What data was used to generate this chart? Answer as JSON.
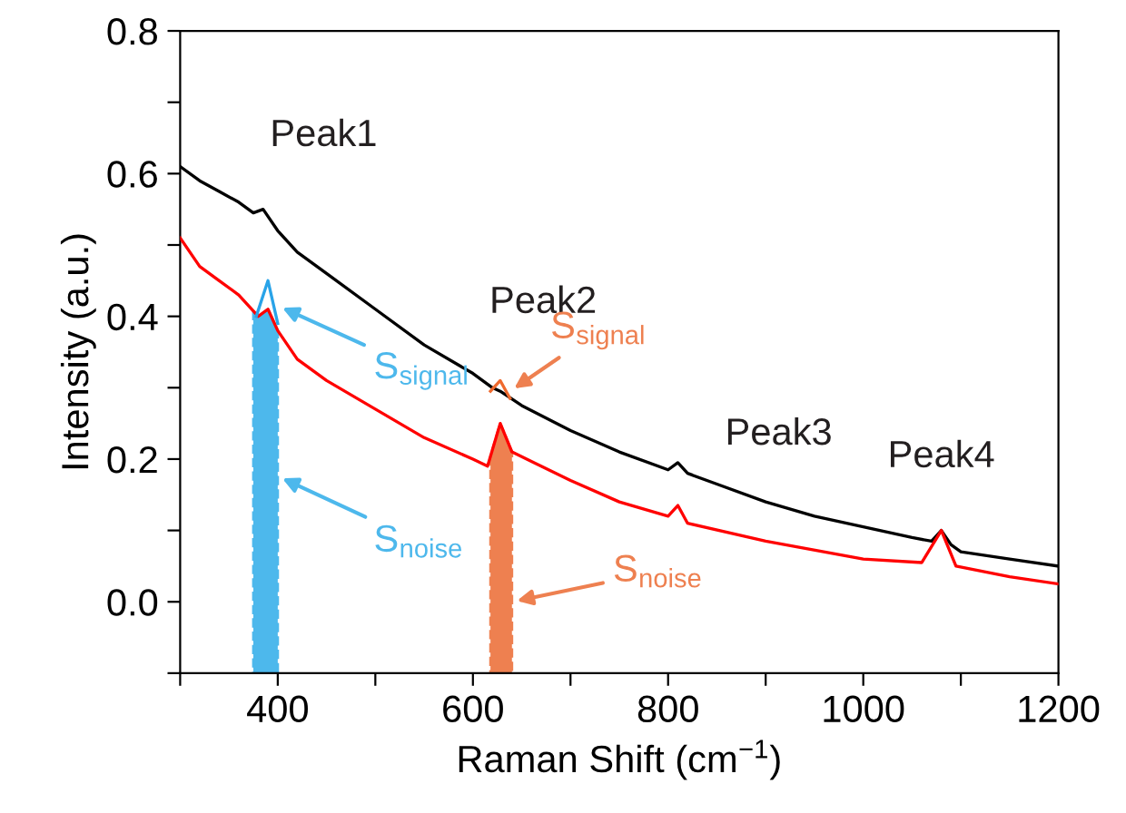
{
  "chart_data": {
    "type": "line",
    "xlabel": "Raman Shift (cm$^{−1}$)",
    "ylabel": "Intensity (a.u.)",
    "xlim": [
      300,
      1200
    ],
    "xticks": [
      {
        "value": 300,
        "label": null
      },
      400,
      {
        "value": 500,
        "label": null
      },
      600,
      {
        "value": 700,
        "label": null
      },
      800,
      {
        "value": 900,
        "label": null
      },
      1000,
      {
        "value": 1100,
        "label": null
      },
      1200
    ],
    "ylim": [
      -0.1,
      0.8
    ],
    "yticks": [
      {
        "value": -0.1,
        "label": null
      },
      "0.0",
      {
        "value": 0.1,
        "label": null
      },
      0.2,
      {
        "value": 0.3,
        "label": null
      },
      0.4,
      {
        "value": 0.5,
        "label": null
      },
      0.6,
      {
        "value": 0.7,
        "label": null
      },
      0.8
    ],
    "grid": false,
    "legend": false,
    "marker": "none",
    "line_style": "solid",
    "series": [
      {
        "color": "#000000",
        "x": [
          300,
          320,
          340,
          360,
          375,
          385,
          400,
          420,
          450,
          500,
          550,
          600,
          620,
          628,
          650,
          700,
          750,
          800,
          810,
          820,
          850,
          900,
          950,
          1000,
          1050,
          1070,
          1080,
          1090,
          1100,
          1150,
          1200
        ],
        "values": [
          0.61,
          0.59,
          0.575,
          0.56,
          0.545,
          0.55,
          0.52,
          0.49,
          0.46,
          0.41,
          0.36,
          0.32,
          0.3,
          0.295,
          0.275,
          0.24,
          0.21,
          0.185,
          0.195,
          0.18,
          0.165,
          0.14,
          0.12,
          0.105,
          0.09,
          0.085,
          0.1,
          0.08,
          0.07,
          0.06,
          0.05
        ]
      },
      {
        "color": "#ff0000",
        "x": [
          300,
          320,
          340,
          360,
          380,
          390,
          400,
          420,
          450,
          500,
          550,
          600,
          615,
          628,
          640,
          700,
          750,
          800,
          810,
          820,
          900,
          1000,
          1060,
          1080,
          1095,
          1150,
          1200
        ],
        "values": [
          0.51,
          0.47,
          0.45,
          0.43,
          0.4,
          0.41,
          0.38,
          0.34,
          0.31,
          0.27,
          0.23,
          0.2,
          0.19,
          0.25,
          0.21,
          0.17,
          0.14,
          0.12,
          0.135,
          0.11,
          0.085,
          0.06,
          0.055,
          0.1,
          0.05,
          0.035,
          0.025
        ]
      },
      {
        "color": "#29a3e8",
        "x": [
          378,
          390,
          400
        ],
        "values": [
          0.4,
          0.45,
          0.39
        ]
      },
      {
        "color": "#ef6a2e",
        "x": [
          618,
          628,
          638
        ],
        "values": [
          0.295,
          0.31,
          0.285
        ]
      }
    ],
    "bands": [
      {
        "axis": "x",
        "from": 375,
        "to": 400,
        "label": null,
        "color": "#4db8ec"
      },
      {
        "axis": "x",
        "from": 618,
        "to": 640,
        "label": null,
        "color": "#ee8050"
      }
    ],
    "annotations": [
      {
        "text": "Peak1",
        "x": 385,
        "y": 0.55
      },
      {
        "text": "Peak2",
        "x": 628,
        "y": 0.295
      },
      {
        "text": "Peak3",
        "x": 810,
        "y": 0.195
      },
      {
        "text": "Peak4",
        "x": 1080,
        "y": 0.1
      },
      {
        "text": "S$_{signal}$",
        "x": 400,
        "y": 0.415
      },
      {
        "text": "S$_{noise}$",
        "x": 400,
        "y": 0.176
      },
      {
        "text": "S$_{signal}$",
        "x": 638,
        "y": 0.295
      },
      {
        "text": "S$_{noise}$",
        "x": 640,
        "y": 0.0
      }
    ]
  }
}
